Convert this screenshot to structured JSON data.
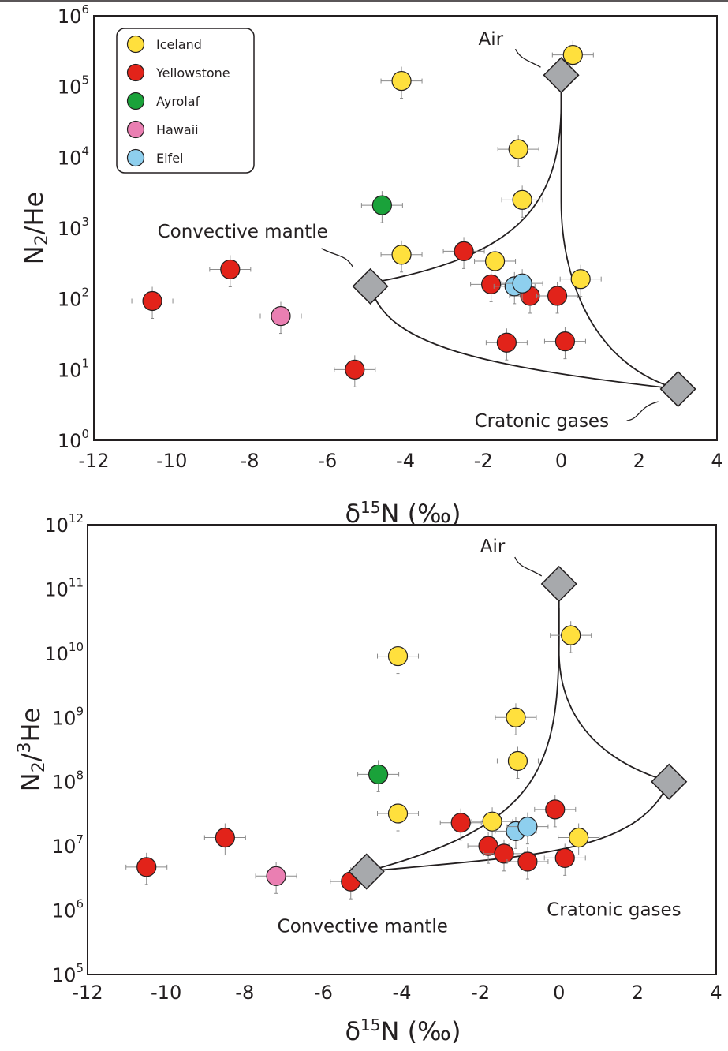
{
  "legend": [
    {
      "name": "Iceland",
      "color": "#ffe03d"
    },
    {
      "name": "Yellowstone",
      "color": "#e2231a"
    },
    {
      "name": "Ayrolaf",
      "color": "#1aa23a"
    },
    {
      "name": "Hawaii",
      "color": "#ea7fb2"
    },
    {
      "name": "Eifel",
      "color": "#8ecfee"
    }
  ],
  "chart_data": [
    {
      "type": "scatter",
      "xlabel": "δ15N (‰)",
      "ylabel": "N2/He",
      "xlim": [
        -12,
        4
      ],
      "ylim_log10": [
        0,
        6
      ],
      "y_scale": "log",
      "x_ticks": [
        "-12",
        "-10",
        "-8",
        "-6",
        "-4",
        "-2",
        "0",
        "2",
        "4"
      ],
      "y_tick_exponents": [
        "0",
        "1",
        "2",
        "3",
        "4",
        "5",
        "6"
      ],
      "legend_position": "top-left",
      "series": [
        {
          "name": "Iceland",
          "points": [
            [
              0.3,
              280000
            ],
            [
              -4.1,
              120000
            ],
            [
              -1.1,
              13000
            ],
            [
              -1.0,
              2500
            ],
            [
              -4.1,
              420
            ],
            [
              -1.7,
              340
            ],
            [
              0.5,
              190
            ]
          ]
        },
        {
          "name": "Yellowstone",
          "points": [
            [
              -10.5,
              93
            ],
            [
              -8.5,
              260
            ],
            [
              -2.5,
              470
            ],
            [
              -1.8,
              160
            ],
            [
              -0.8,
              110
            ],
            [
              -0.1,
              110
            ],
            [
              -1.4,
              24
            ],
            [
              0.1,
              25
            ],
            [
              -5.3,
              10
            ]
          ]
        },
        {
          "name": "Ayrolaf",
          "points": [
            [
              -4.6,
              2100
            ]
          ]
        },
        {
          "name": "Hawaii",
          "points": [
            [
              -7.2,
              57
            ]
          ]
        },
        {
          "name": "Eifel",
          "points": [
            [
              -1.2,
              150
            ],
            [
              -1.0,
              165
            ]
          ]
        }
      ],
      "endmembers": [
        {
          "label": "Air",
          "x": 0.0,
          "y": 145000
        },
        {
          "label": "Convective mantle",
          "x": -4.9,
          "y": 150
        },
        {
          "label": "Cratonic gases",
          "x": 3.0,
          "y": 5.3
        }
      ]
    },
    {
      "type": "scatter",
      "xlabel": "δ15N (‰)",
      "ylabel": "N2/3He",
      "xlim": [
        -12,
        4
      ],
      "ylim_log10": [
        5,
        12
      ],
      "y_scale": "log",
      "x_ticks": [
        "-12",
        "-10",
        "-8",
        "-6",
        "-4",
        "-2",
        "0",
        "2",
        "4"
      ],
      "y_tick_exponents": [
        "5",
        "6",
        "7",
        "8",
        "9",
        "10",
        "11",
        "12"
      ],
      "series": [
        {
          "name": "Iceland",
          "points": [
            [
              0.3,
              19000000000
            ],
            [
              -4.1,
              9000000000
            ],
            [
              -1.1,
              1000000000
            ],
            [
              -1.05,
              210000000
            ],
            [
              -4.1,
              32000000
            ],
            [
              -1.7,
              24000000
            ],
            [
              0.5,
              13500000
            ]
          ]
        },
        {
          "name": "Yellowstone",
          "points": [
            [
              -10.5,
              4700000
            ],
            [
              -8.5,
              13500000
            ],
            [
              -2.5,
              23000000
            ],
            [
              -0.1,
              37000000
            ],
            [
              -1.8,
              10000000
            ],
            [
              -1.4,
              7600000
            ],
            [
              -0.8,
              5700000
            ],
            [
              0.15,
              6500000
            ],
            [
              -5.3,
              2800000
            ]
          ]
        },
        {
          "name": "Ayrolaf",
          "points": [
            [
              -4.6,
              130000000
            ]
          ]
        },
        {
          "name": "Hawaii",
          "points": [
            [
              -7.2,
              3400000
            ]
          ]
        },
        {
          "name": "Eifel",
          "points": [
            [
              -1.1,
              17000000
            ],
            [
              -0.8,
              20000000
            ]
          ]
        }
      ],
      "endmembers": [
        {
          "label": "Air",
          "x": 0.0,
          "y": 120000000000
        },
        {
          "label": "Convective mantle",
          "x": -4.9,
          "y": 4000000
        },
        {
          "label": "Cratonic gases",
          "x": 2.8,
          "y": 100000000
        }
      ]
    }
  ]
}
